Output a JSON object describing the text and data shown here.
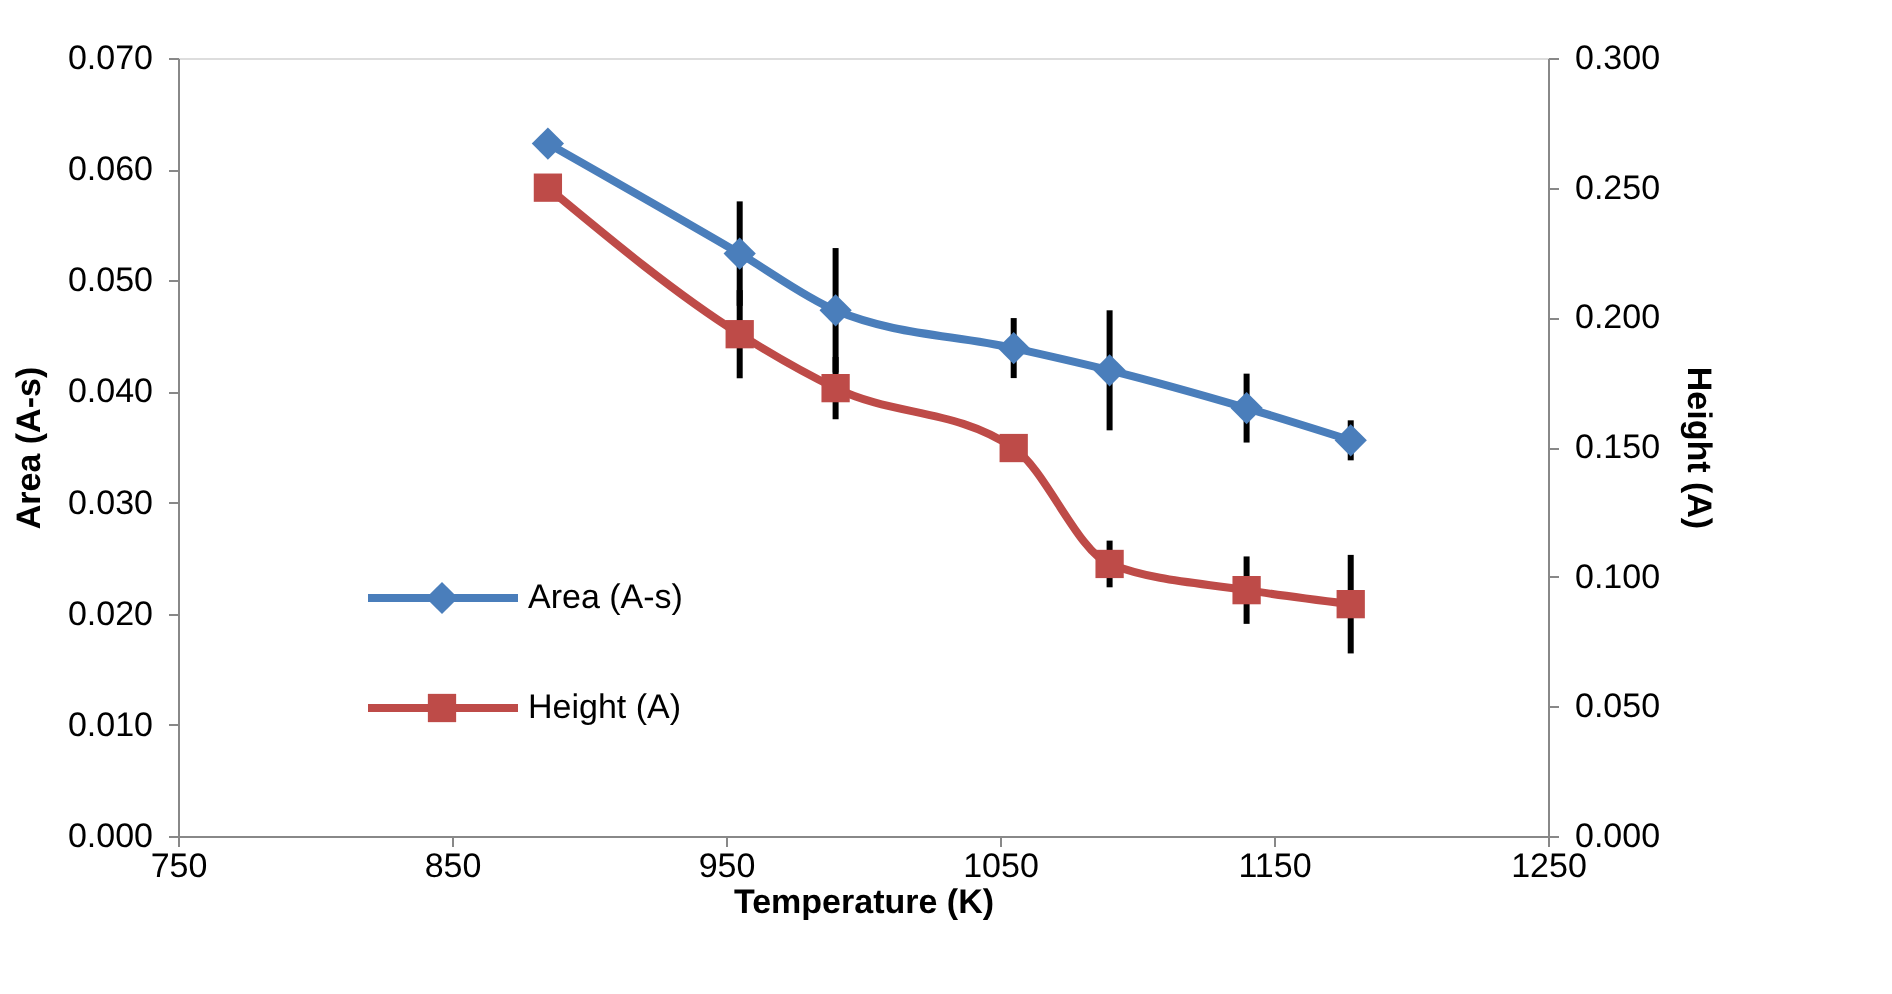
{
  "chart_data": {
    "type": "line",
    "xlabel": "Temperature (K)",
    "ylabel": "Area (A-s)",
    "y2label": "Height (A)",
    "x": [
      885,
      955,
      990,
      1055,
      1090,
      1140,
      1178
    ],
    "series": [
      {
        "name": "Area (A-s)",
        "color": "#4a7ebb",
        "marker": "diamond",
        "values": [
          0.0623,
          0.0524,
          0.0473,
          0.0439,
          0.0419,
          0.0385,
          0.0356
        ],
        "errors": [
          null,
          0.0047,
          0.0056,
          0.0027,
          0.0054,
          0.0031,
          0.0018
        ]
      },
      {
        "name": "Height (A)",
        "color": "#be4b48",
        "marker": "square",
        "axis": "y2",
        "values": [
          0.25,
          0.1935,
          0.1727,
          0.1496,
          0.1049,
          0.0948,
          0.0894
        ],
        "errors": [
          null,
          0.017,
          0.012,
          null,
          0.009,
          0.013,
          0.019
        ]
      }
    ],
    "xlim": [
      750,
      1250
    ],
    "xticks": [
      750,
      850,
      950,
      1050,
      1150,
      1250
    ],
    "ylim": [
      0,
      0.07
    ],
    "yticks": [
      {
        "value": 0,
        "label": "0.000"
      },
      {
        "value": 0.01,
        "label": "0.010"
      },
      {
        "value": 0.02,
        "label": "0.020"
      },
      {
        "value": 0.03,
        "label": "0.030"
      },
      {
        "value": 0.04,
        "label": "0.040"
      },
      {
        "value": 0.05,
        "label": "0.050"
      },
      {
        "value": 0.06,
        "label": "0.060"
      },
      {
        "value": 0.07,
        "label": "0.070"
      }
    ],
    "y2lim": [
      0,
      0.3
    ],
    "y2ticks": [
      {
        "value": 0,
        "label": "0.000"
      },
      {
        "value": 0.05,
        "label": "0.050"
      },
      {
        "value": 0.1,
        "label": "0.100"
      },
      {
        "value": 0.15,
        "label": "0.150"
      },
      {
        "value": 0.2,
        "label": "0.200"
      },
      {
        "value": 0.25,
        "label": "0.250"
      },
      {
        "value": 0.3,
        "label": "0.300"
      }
    ],
    "grid": false,
    "legend": "left",
    "line_style": "solid"
  }
}
